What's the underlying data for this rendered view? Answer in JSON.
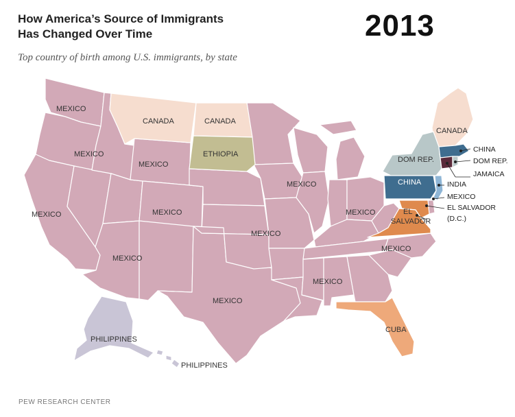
{
  "header": {
    "title_line1": "How America’s Source of Immigrants",
    "title_line2": "Has Changed Over Time",
    "year": "2013",
    "subtitle": "Top country of birth among U.S. immigrants, by state"
  },
  "footer": {
    "source": "PEW RESEARCH CENTER"
  },
  "colors": {
    "mexico": "#d2a9b7",
    "canada": "#f6ddcf",
    "ethiopia": "#c2bd92",
    "dom_rep": "#b8c7c8",
    "china": "#3f6d8f",
    "india": "#8fb6d6",
    "el_salvador": "#df8a4d",
    "cuba": "#eea97a",
    "philippines": "#c9c5d6",
    "jamaica": "#5a2a3a",
    "border": "#ffffff"
  },
  "map": {
    "labels": {
      "wa": "MEXICO",
      "or": "MEXICO",
      "id": "MEXICO",
      "mt": "CANADA",
      "nd": "CANADA",
      "sd": "ETHIOPIA",
      "wy": "MEXICO",
      "ca": "MEXICO",
      "nv_ut": "MEXICO",
      "co": "MEXICO",
      "midwest": "MEXICO",
      "ks_mo": "MEXICO",
      "az_nm": "MEXICO",
      "tx": "MEXICO",
      "south": "MEXICO",
      "nc": "MEXICO",
      "oh": "MEXICO",
      "ny": "DOM REP.",
      "pa": "CHINA",
      "va_line1": "EL",
      "va_line2": "SALVADOR",
      "fl": "CUBA",
      "ak": "PHILIPPINES",
      "hi": "PHILIPPINES",
      "ne_canada": "CANADA"
    },
    "callouts": {
      "ma": "CHINA",
      "ri": "DOM REP.",
      "ct": "JAMAICA",
      "nj": "INDIA",
      "de": "MEXICO",
      "md": "EL SALVADOR",
      "dc": "(D.C.)"
    }
  }
}
